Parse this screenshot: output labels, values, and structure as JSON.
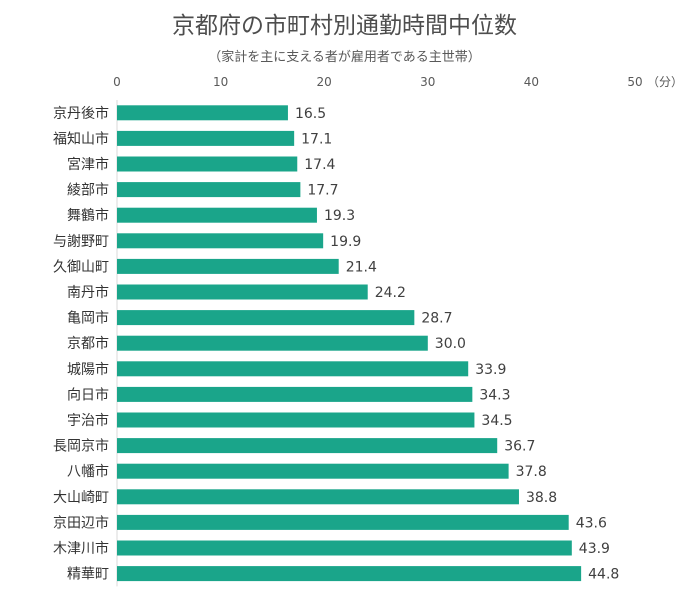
{
  "chart_data": {
    "type": "bar",
    "orientation": "horizontal",
    "title": "京都府の市町村別通勤時間中位数",
    "subtitle": "（家計を主に支える者が雇用者である主世帯）",
    "unit_label": "（分）",
    "xlim": [
      0,
      50
    ],
    "x_ticks": [
      "0",
      "10",
      "20",
      "30",
      "40",
      "50"
    ],
    "grid": false,
    "bar_color": "#1aa58a",
    "categories": [
      "京丹後市",
      "福知山市",
      "宮津市",
      "綾部市",
      "舞鶴市",
      "与謝野町",
      "久御山町",
      "南丹市",
      "亀岡市",
      "京都市",
      "城陽市",
      "向日市",
      "宇治市",
      "長岡京市",
      "八幡市",
      "大山崎町",
      "京田辺市",
      "木津川市",
      "精華町"
    ],
    "values": [
      16.5,
      17.1,
      17.4,
      17.7,
      19.3,
      19.9,
      21.4,
      24.2,
      28.7,
      30.0,
      33.9,
      34.3,
      34.5,
      36.7,
      37.8,
      38.8,
      43.6,
      43.9,
      44.8
    ],
    "value_labels": [
      "16.5",
      "17.1",
      "17.4",
      "17.7",
      "19.3",
      "19.9",
      "21.4",
      "24.2",
      "28.7",
      "30.0",
      "33.9",
      "34.3",
      "34.5",
      "36.7",
      "37.8",
      "38.8",
      "43.6",
      "43.9",
      "44.8"
    ]
  }
}
